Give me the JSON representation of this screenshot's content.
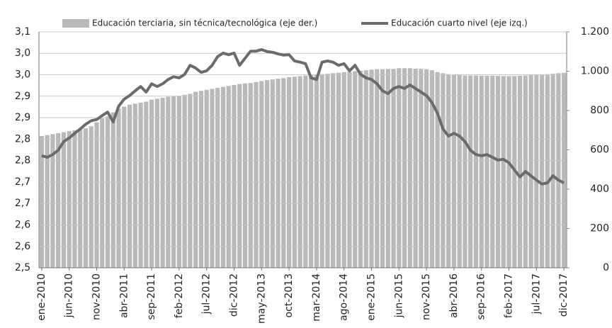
{
  "chart_data": {
    "type": "combo",
    "categories": [
      "ene-2010",
      null,
      null,
      null,
      null,
      "jun-2010",
      null,
      null,
      null,
      null,
      "nov-2010",
      null,
      null,
      null,
      null,
      "abr-2011",
      null,
      null,
      null,
      null,
      "sep-2011",
      null,
      null,
      null,
      null,
      "feb-2012",
      null,
      null,
      null,
      null,
      "jul-2012",
      null,
      null,
      null,
      null,
      "dic-2012",
      null,
      null,
      null,
      null,
      "may-2013",
      null,
      null,
      null,
      null,
      "oct-2013",
      null,
      null,
      null,
      null,
      "mar-2014",
      null,
      null,
      null,
      null,
      "ago-2014",
      null,
      null,
      null,
      null,
      "ene-2015",
      null,
      null,
      null,
      null,
      "jun-2015",
      null,
      null,
      null,
      null,
      "nov-2015",
      null,
      null,
      null,
      null,
      "abr-2016",
      null,
      null,
      null,
      null,
      "sep-2016",
      null,
      null,
      null,
      null,
      "feb-2017",
      null,
      null,
      null,
      null,
      "jul-2017",
      null,
      null,
      null,
      null,
      "dic-2017"
    ],
    "series": [
      {
        "name": "Educación terciaria, sin técnica/tecnológica (eje der.)",
        "type": "bar",
        "axis": "y2",
        "color": "#b9b9b9",
        "values": [
          670,
          675,
          680,
          685,
          690,
          695,
          700,
          705,
          710,
          720,
          740,
          760,
          770,
          790,
          810,
          820,
          830,
          835,
          840,
          845,
          855,
          860,
          865,
          870,
          872,
          875,
          880,
          885,
          895,
          900,
          905,
          910,
          915,
          920,
          925,
          930,
          935,
          938,
          940,
          945,
          950,
          955,
          958,
          962,
          965,
          970,
          972,
          975,
          978,
          980,
          982,
          985,
          987,
          990,
          992,
          995,
          997,
          1000,
          1002,
          1005,
          1008,
          1010,
          1010,
          1012,
          1012,
          1015,
          1015,
          1015,
          1013,
          1012,
          1010,
          1005,
          995,
          990,
          985,
          982,
          980,
          978,
          978,
          978,
          977,
          977,
          977,
          976,
          975,
          975,
          975,
          977,
          978,
          980,
          982,
          983,
          985,
          987,
          990,
          992
        ]
      },
      {
        "name": "Educación cuarto nivel (eje izq.)",
        "type": "line",
        "color": "#6b6b6b",
        "values": [
          2.785,
          2.781,
          2.788,
          2.799,
          2.821,
          2.83,
          2.842,
          2.853,
          2.865,
          2.874,
          2.877,
          2.887,
          2.896,
          2.871,
          2.911,
          2.929,
          2.938,
          2.95,
          2.961,
          2.947,
          2.968,
          2.961,
          2.968,
          2.979,
          2.986,
          2.983,
          2.992,
          3.015,
          3.008,
          2.997,
          3.001,
          3.015,
          3.037,
          3.046,
          3.042,
          3.046,
          3.015,
          3.033,
          3.051,
          3.051,
          3.055,
          3.05,
          3.048,
          3.044,
          3.041,
          3.042,
          3.026,
          3.023,
          3.019,
          2.983,
          2.979,
          3.023,
          3.026,
          3.023,
          3.015,
          3.019,
          3.001,
          3.015,
          2.992,
          2.983,
          2.979,
          2.968,
          2.95,
          2.943,
          2.956,
          2.961,
          2.956,
          2.965,
          2.956,
          2.947,
          2.938,
          2.92,
          2.893,
          2.853,
          2.835,
          2.842,
          2.835,
          2.821,
          2.799,
          2.788,
          2.785,
          2.788,
          2.781,
          2.774,
          2.776,
          2.767,
          2.749,
          2.731,
          2.745,
          2.734,
          2.723,
          2.713,
          2.716,
          2.734,
          2.723,
          2.716
        ]
      }
    ],
    "ylim": [
      2.5,
      3.1
    ],
    "yticks": [
      {
        "value": 2.5,
        "label": "2,5"
      },
      {
        "value": 2.5545,
        "label": "2,6"
      },
      {
        "value": 2.6091,
        "label": "2,6"
      },
      {
        "value": 2.6636,
        "label": "2,7"
      },
      {
        "value": 2.7182,
        "label": "2,7"
      },
      {
        "value": 2.7727,
        "label": "2,8"
      },
      {
        "value": 2.8273,
        "label": "2,8"
      },
      {
        "value": 2.8818,
        "label": "2,9"
      },
      {
        "value": 2.9364,
        "label": "2,9"
      },
      {
        "value": 2.9909,
        "label": "3,0"
      },
      {
        "value": 3.0455,
        "label": "3,0"
      },
      {
        "value": 3.1,
        "label": "3,1"
      }
    ],
    "y2lim": [
      0,
      1200
    ],
    "y2ticks": [
      0,
      200,
      400,
      600,
      800,
      {
        "value": 1000,
        "label": "1.000"
      },
      {
        "value": 1200,
        "label": "1.200"
      }
    ],
    "grid": true,
    "legend": "top"
  }
}
